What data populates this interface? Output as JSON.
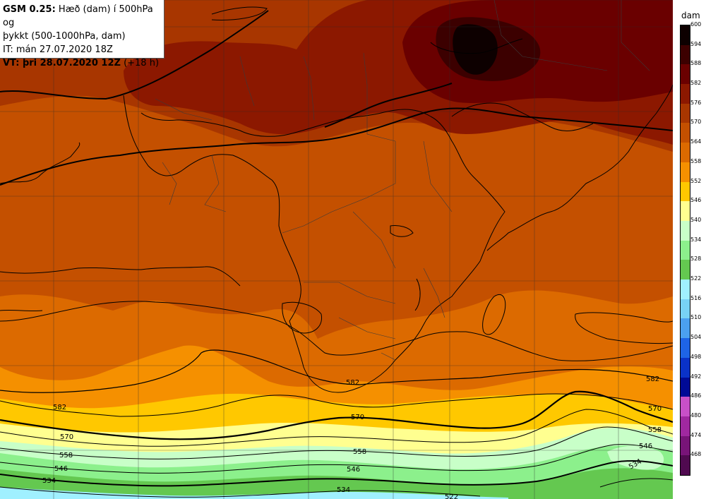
{
  "info": {
    "model": "GSM 0.25:",
    "desc_line1": " Hæð (dam) í 500hPa og",
    "desc_line2": "þykkt (500-1000hPa, dam)",
    "init_time": "IT: mán 27.07.2020 18Z",
    "valid_label": "VT: þri 28.07.2020 12Z",
    "lead": " (+18 h)"
  },
  "legend": {
    "unit": "dam",
    "levels": [
      "600",
      "594",
      "588",
      "582",
      "576",
      "570",
      "564",
      "558",
      "552",
      "546",
      "540",
      "534",
      "528",
      "522",
      "516",
      "510",
      "504",
      "498",
      "492",
      "486",
      "480",
      "474",
      "468"
    ],
    "colors": [
      "#0d0000",
      "#3c0000",
      "#6a0000",
      "#8c1800",
      "#a83600",
      "#c45000",
      "#dc6a00",
      "#f59000",
      "#ffc800",
      "#ffff90",
      "#c8ffc8",
      "#8cf08c",
      "#64c850",
      "#a0f0ff",
      "#78d2f5",
      "#4ba0f0",
      "#1e64e6",
      "#0a32c8",
      "#000a96",
      "#c850c8",
      "#a028a0",
      "#781478",
      "#500a50"
    ]
  },
  "contour_labels": [
    "582",
    "582",
    "582",
    "570",
    "570",
    "570",
    "558",
    "558",
    "558",
    "546",
    "546",
    "546",
    "534",
    "534",
    "534",
    "522"
  ]
}
